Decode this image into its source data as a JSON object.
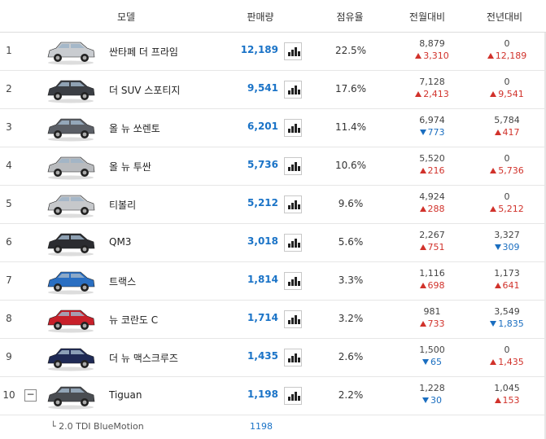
{
  "header": {
    "model": "모델",
    "sales": "판매량",
    "share": "점유율",
    "mom": "전월대비",
    "yoy": "전년대비"
  },
  "colors": {
    "sales_blue": "#1a73c7",
    "up_red": "#d1322b",
    "down_blue": "#1a6ec0"
  },
  "rows": [
    {
      "rank": "1",
      "name": "싼타페 더 프라임",
      "car_color": "#c9ccd0",
      "sales": "12,189",
      "share": "22.5%",
      "mom_prev": "8,879",
      "mom_change": "3,310",
      "mom_dir": "up",
      "yoy_prev": "0",
      "yoy_change": "12,189",
      "yoy_dir": "up"
    },
    {
      "rank": "2",
      "name": "더 SUV 스포티지",
      "car_color": "#3b3e44",
      "sales": "9,541",
      "share": "17.6%",
      "mom_prev": "7,128",
      "mom_change": "2,413",
      "mom_dir": "up",
      "yoy_prev": "0",
      "yoy_change": "9,541",
      "yoy_dir": "up"
    },
    {
      "rank": "3",
      "name": "올 뉴 쏘렌토",
      "car_color": "#5b5f66",
      "sales": "6,201",
      "share": "11.4%",
      "mom_prev": "6,974",
      "mom_change": "773",
      "mom_dir": "down",
      "yoy_prev": "5,784",
      "yoy_change": "417",
      "yoy_dir": "up"
    },
    {
      "rank": "4",
      "name": "올 뉴 투싼",
      "car_color": "#b9bbbe",
      "sales": "5,736",
      "share": "10.6%",
      "mom_prev": "5,520",
      "mom_change": "216",
      "mom_dir": "up",
      "yoy_prev": "0",
      "yoy_change": "5,736",
      "yoy_dir": "up"
    },
    {
      "rank": "5",
      "name": "티볼리",
      "car_color": "#c6c8cb",
      "sales": "5,212",
      "share": "9.6%",
      "mom_prev": "4,924",
      "mom_change": "288",
      "mom_dir": "up",
      "yoy_prev": "0",
      "yoy_change": "5,212",
      "yoy_dir": "up"
    },
    {
      "rank": "6",
      "name": "QM3",
      "car_color": "#2b2c30",
      "sales": "3,018",
      "share": "5.6%",
      "mom_prev": "2,267",
      "mom_change": "751",
      "mom_dir": "up",
      "yoy_prev": "3,327",
      "yoy_change": "309",
      "yoy_dir": "down"
    },
    {
      "rank": "7",
      "name": "트랙스",
      "car_color": "#2a6fc2",
      "sales": "1,814",
      "share": "3.3%",
      "mom_prev": "1,116",
      "mom_change": "698",
      "mom_dir": "up",
      "yoy_prev": "1,173",
      "yoy_change": "641",
      "yoy_dir": "up"
    },
    {
      "rank": "8",
      "name": "뉴 코란도 C",
      "car_color": "#c8202a",
      "sales": "1,714",
      "share": "3.2%",
      "mom_prev": "981",
      "mom_change": "733",
      "mom_dir": "up",
      "yoy_prev": "3,549",
      "yoy_change": "1,835",
      "yoy_dir": "down"
    },
    {
      "rank": "9",
      "name": "더 뉴 맥스크루즈",
      "car_color": "#1f2a55",
      "sales": "1,435",
      "share": "2.6%",
      "mom_prev": "1,500",
      "mom_change": "65",
      "mom_dir": "down",
      "yoy_prev": "0",
      "yoy_change": "1,435",
      "yoy_dir": "up"
    },
    {
      "rank": "10",
      "name": "Tiguan",
      "car_color": "#4a4d52",
      "sales": "1,198",
      "share": "2.2%",
      "mom_prev": "1,228",
      "mom_change": "30",
      "mom_dir": "down",
      "yoy_prev": "1,045",
      "yoy_change": "153",
      "yoy_dir": "up"
    }
  ],
  "expand_symbol": "−",
  "subrow": {
    "name": "└ 2.0 TDI BlueMotion",
    "sales": "1198"
  }
}
